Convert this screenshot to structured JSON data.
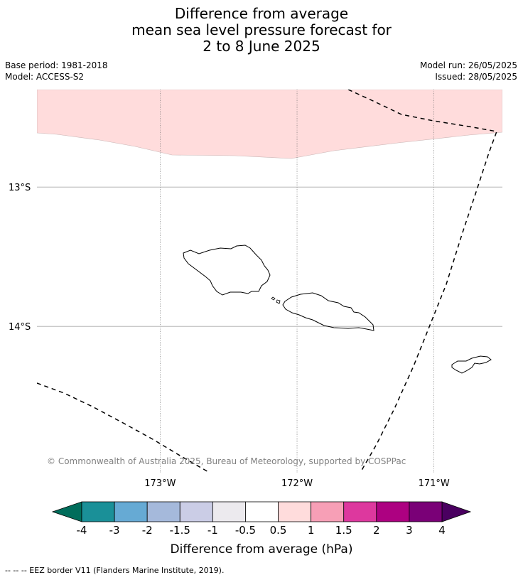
{
  "title": {
    "line1": "Difference from average",
    "line2": "mean sea level pressure forecast for",
    "line3": "2 to 8 June 2025"
  },
  "info_left": {
    "base_period": "Base period: 1981-2018",
    "model": "Model: ACCESS-S2"
  },
  "info_right": {
    "model_run": "Model run: 26/05/2025",
    "issued": "Issued: 28/05/2025"
  },
  "map": {
    "lon_range": [
      -173.9,
      -170.5
    ],
    "lat_range": [
      -12.3,
      -15.05
    ],
    "lat_ticks": [
      {
        "value": -13,
        "label": "13°S"
      },
      {
        "value": -14,
        "label": "14°S"
      }
    ],
    "lon_ticks": [
      {
        "value": -173,
        "label": "173°W"
      },
      {
        "value": -172,
        "label": "172°W"
      },
      {
        "value": -171,
        "label": "171°W"
      }
    ],
    "anomaly_region": {
      "category": "0.5 to 1",
      "color": "#ffdcdc",
      "location": "northern part of map"
    },
    "eez_border_color": "#000000",
    "copyright": "© Commonwealth of Australia 2025, Bureau of Meteorology, supported by COSPPac"
  },
  "colorbar": {
    "label": "Difference from average (hPa)",
    "ticks": [
      "-4",
      "-3",
      "-2",
      "-1.5",
      "-1",
      "-0.5",
      "0.5",
      "1",
      "1.5",
      "2",
      "3",
      "4"
    ],
    "low_extend_color": "#006d5b",
    "high_extend_color": "#4a0060",
    "colors": [
      "#1a9098",
      "#66aad4",
      "#a5b9db",
      "#cbcde6",
      "#eceaee",
      "#ffffff",
      "#ffdcdc",
      "#f79fb6",
      "#dd389e",
      "#ad0181",
      "#7a0077"
    ]
  },
  "footer": {
    "legend": "--  --  -- EEZ border V11 (Flanders Marine Institute, 2019)."
  }
}
